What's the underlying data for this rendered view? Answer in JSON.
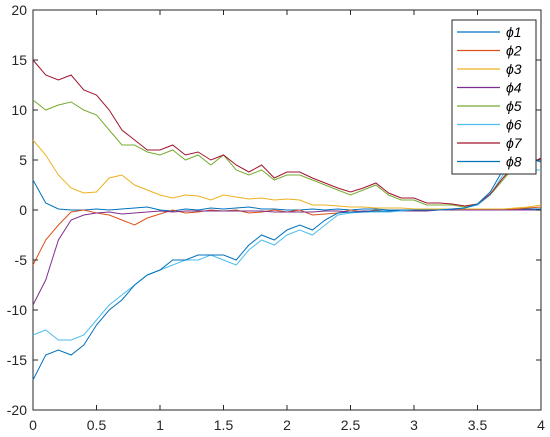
{
  "chart_data": {
    "type": "line",
    "title": "",
    "xlabel": "",
    "ylabel": "",
    "xlim": [
      0,
      4
    ],
    "ylim": [
      -20,
      20
    ],
    "xticks": [
      0,
      0.5,
      1,
      1.5,
      2,
      2.5,
      3,
      3.5,
      4
    ],
    "xtick_labels": [
      "0",
      "0.5",
      "1",
      "1.5",
      "2",
      "2.5",
      "3",
      "3.5",
      "4"
    ],
    "yticks": [
      -20,
      -15,
      -10,
      -5,
      0,
      5,
      10,
      15,
      20
    ],
    "ytick_labels": [
      "-20",
      "-15",
      "-10",
      "-5",
      "0",
      "5",
      "10",
      "15",
      "20"
    ],
    "grid": false,
    "legend_position": "top-right",
    "x": [
      0,
      0.1,
      0.2,
      0.3,
      0.4,
      0.5,
      0.6,
      0.7,
      0.8,
      0.9,
      1.0,
      1.1,
      1.2,
      1.3,
      1.4,
      1.5,
      1.6,
      1.7,
      1.8,
      1.9,
      2.0,
      2.1,
      2.2,
      2.3,
      2.4,
      2.5,
      2.6,
      2.7,
      2.8,
      2.9,
      3.0,
      3.1,
      3.2,
      3.3,
      3.4,
      3.5,
      3.6,
      3.7,
      3.8,
      3.9,
      4.0
    ],
    "series": [
      {
        "name": "ϕ1",
        "color": "#0072BD",
        "values": [
          3.0,
          0.7,
          0.1,
          0.0,
          0.0,
          0.1,
          0.0,
          0.1,
          0.2,
          0.3,
          0.0,
          -0.1,
          0.1,
          0.0,
          0.2,
          0.1,
          0.2,
          0.3,
          0.1,
          0.1,
          0.0,
          0.0,
          0.1,
          0.0,
          0.1,
          0.0,
          0.1,
          0.1,
          0.0,
          0.0,
          0.0,
          0.0,
          0.0,
          0.0,
          0.0,
          0.0,
          0.0,
          0.0,
          0.1,
          0.1,
          0.1
        ]
      },
      {
        "name": "ϕ2",
        "color": "#D95319",
        "values": [
          -5.5,
          -3.0,
          -1.5,
          -0.2,
          0.0,
          -0.3,
          -0.5,
          -1.0,
          -1.5,
          -0.8,
          -0.4,
          0.0,
          -0.3,
          -0.2,
          0.0,
          -0.1,
          0.0,
          -0.3,
          -0.2,
          0.0,
          -0.2,
          0.0,
          -0.5,
          -0.4,
          -0.3,
          0.0,
          -0.2,
          0.0,
          -0.2,
          0.0,
          0.0,
          0.0,
          0.0,
          0.0,
          0.0,
          0.0,
          0.0,
          0.0,
          0.1,
          0.2,
          0.3
        ]
      },
      {
        "name": "ϕ3",
        "color": "#EDB120",
        "values": [
          7.0,
          5.5,
          3.5,
          2.2,
          1.7,
          1.8,
          3.2,
          3.5,
          2.5,
          2.0,
          1.5,
          1.2,
          1.5,
          1.4,
          1.0,
          1.5,
          1.3,
          1.1,
          1.2,
          1.0,
          1.1,
          1.0,
          0.5,
          0.5,
          0.4,
          0.3,
          0.3,
          0.2,
          0.2,
          0.2,
          0.1,
          0.1,
          0.1,
          0.1,
          0.1,
          0.1,
          0.1,
          0.1,
          0.2,
          0.3,
          0.5
        ]
      },
      {
        "name": "ϕ4",
        "color": "#7E2F8E",
        "values": [
          -9.5,
          -7.0,
          -3.0,
          -1.0,
          -0.5,
          -0.3,
          -0.2,
          -0.4,
          -0.3,
          -0.2,
          -0.1,
          -0.2,
          -0.1,
          -0.1,
          -0.1,
          -0.1,
          -0.1,
          -0.1,
          -0.1,
          -0.2,
          -0.2,
          -0.2,
          -0.2,
          -0.1,
          -0.1,
          -0.2,
          -0.1,
          -0.1,
          -0.1,
          -0.1,
          -0.1,
          -0.1,
          0.0,
          0.0,
          0.0,
          0.0,
          0.0,
          0.0,
          0.0,
          0.0,
          0.0
        ]
      },
      {
        "name": "ϕ5",
        "color": "#77AC30",
        "values": [
          11.0,
          10.0,
          10.5,
          10.8,
          10.0,
          9.5,
          8.0,
          6.5,
          6.5,
          5.8,
          5.5,
          6.0,
          5.0,
          5.5,
          4.5,
          5.5,
          4.0,
          3.5,
          4.0,
          3.0,
          3.5,
          3.5,
          3.0,
          2.5,
          2.0,
          1.5,
          2.0,
          2.5,
          1.5,
          1.0,
          1.0,
          0.5,
          0.5,
          0.5,
          0.3,
          0.5,
          1.5,
          3.0,
          4.5,
          4.0,
          4.0
        ]
      },
      {
        "name": "ϕ6",
        "color": "#4DBEEE",
        "values": [
          -12.5,
          -12.0,
          -13.0,
          -13.0,
          -12.5,
          -11.0,
          -9.5,
          -8.5,
          -7.5,
          -6.5,
          -6.0,
          -5.5,
          -5.0,
          -5.0,
          -4.5,
          -5.0,
          -5.5,
          -4.0,
          -3.0,
          -3.5,
          -2.5,
          -2.0,
          -2.5,
          -1.5,
          -0.5,
          -0.3,
          -0.2,
          -0.2,
          -0.2,
          -0.1,
          0.0,
          0.0,
          0.0,
          0.1,
          0.2,
          0.5,
          1.5,
          3.5,
          4.5,
          4.0,
          4.0
        ]
      },
      {
        "name": "ϕ7",
        "color": "#A2142F",
        "values": [
          15.0,
          13.5,
          13.0,
          13.5,
          12.0,
          11.5,
          10.0,
          8.0,
          7.0,
          6.0,
          6.0,
          6.5,
          5.5,
          5.8,
          5.0,
          5.5,
          4.5,
          3.8,
          4.5,
          3.2,
          3.8,
          3.8,
          3.2,
          2.7,
          2.2,
          1.8,
          2.2,
          2.7,
          1.7,
          1.2,
          1.2,
          0.7,
          0.7,
          0.6,
          0.4,
          0.6,
          1.6,
          3.2,
          4.6,
          4.5,
          5.2
        ]
      },
      {
        "name": "ϕ8",
        "color": "#0072BD",
        "values": [
          -17.0,
          -14.5,
          -14.0,
          -14.5,
          -13.5,
          -11.5,
          -10.0,
          -9.0,
          -7.5,
          -6.5,
          -6.0,
          -5.0,
          -5.0,
          -4.5,
          -4.5,
          -4.5,
          -5.0,
          -3.5,
          -2.5,
          -3.0,
          -2.0,
          -1.5,
          -2.0,
          -1.0,
          -0.3,
          -0.2,
          -0.2,
          -0.1,
          -0.1,
          0.0,
          0.0,
          0.0,
          0.0,
          0.1,
          0.2,
          0.6,
          1.8,
          4.0,
          5.0,
          5.2,
          4.8
        ]
      }
    ]
  }
}
